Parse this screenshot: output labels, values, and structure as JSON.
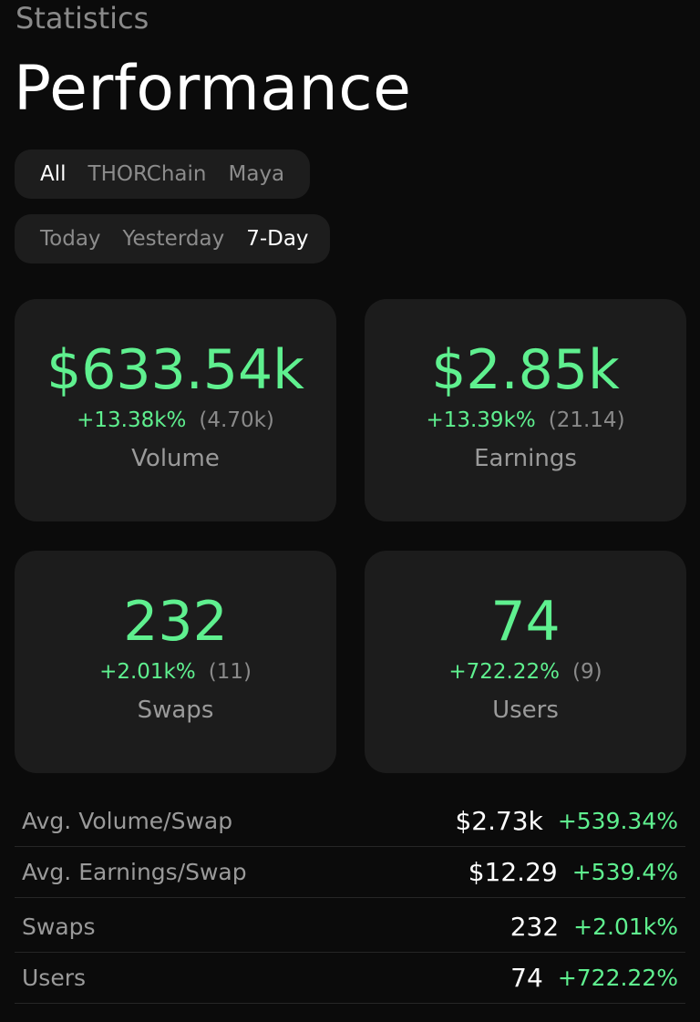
{
  "header": {
    "eyebrow": "Statistics",
    "title": "Performance"
  },
  "filters": {
    "network": {
      "options": [
        "All",
        "THORChain",
        "Maya"
      ],
      "selected": "All"
    },
    "period": {
      "options": [
        "Today",
        "Yesterday",
        "7-Day"
      ],
      "selected": "7-Day"
    }
  },
  "cards": {
    "volume": {
      "value": "$633.54k",
      "change": "+13.38k%",
      "previous": "(4.70k)",
      "label": "Volume"
    },
    "earnings": {
      "value": "$2.85k",
      "change": "+13.39k%",
      "previous": "(21.14)",
      "label": "Earnings"
    },
    "swaps": {
      "value": "232",
      "change": "+2.01k%",
      "previous": "(11)",
      "label": "Swaps"
    },
    "users": {
      "value": "74",
      "change": "+722.22%",
      "previous": "(9)",
      "label": "Users"
    }
  },
  "stats": [
    {
      "name": "Avg. Volume/Swap",
      "value": "$2.73k",
      "change": "+539.34%"
    },
    {
      "name": "Avg. Earnings/Swap",
      "value": "$12.29",
      "change": "+539.4%"
    },
    {
      "name": "Swaps",
      "value": "232",
      "change": "+2.01k%"
    },
    {
      "name": "Users",
      "value": "74",
      "change": "+722.22%"
    }
  ],
  "colors": {
    "background": "#0b0b0b",
    "card": "#1c1c1c",
    "positive": "#5ff08f",
    "muted": "#8a8a8a"
  }
}
